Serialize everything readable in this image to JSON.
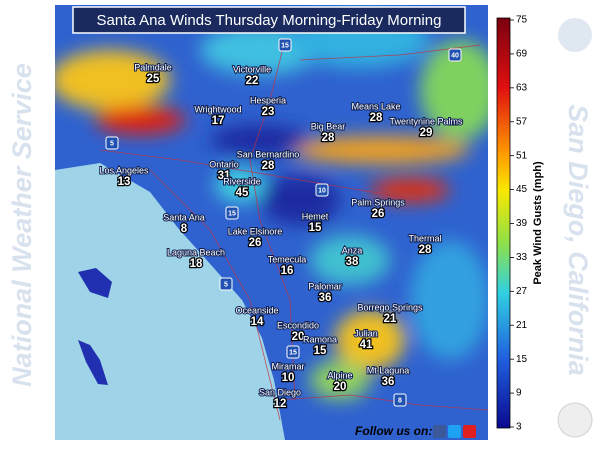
{
  "title": "Santa Ana Winds Thursday Morning-Friday Morning",
  "left_banner": "National Weather Service",
  "right_banner": "San Diego, California",
  "colorbar": {
    "label": "Peak Wind Gusts (mph)",
    "ticks": [
      75,
      69,
      63,
      57,
      51,
      45,
      39,
      33,
      27,
      21,
      15,
      9,
      3
    ]
  },
  "cities": [
    {
      "name": "Palmdale",
      "gust": "25"
    },
    {
      "name": "Victorville",
      "gust": "22"
    },
    {
      "name": "Hesperia",
      "gust": "23"
    },
    {
      "name": "Wrightwood",
      "gust": "17"
    },
    {
      "name": "Means Lake",
      "gust": "28"
    },
    {
      "name": "Twentynine Palms",
      "gust": "29"
    },
    {
      "name": "Big Bear",
      "gust": "28"
    },
    {
      "name": "San Bernardino",
      "gust": "28"
    },
    {
      "name": "Los Angeles",
      "gust": "13"
    },
    {
      "name": "Ontario",
      "gust": "31"
    },
    {
      "name": "Riverside",
      "gust": "45"
    },
    {
      "name": "Palm Springs",
      "gust": "26"
    },
    {
      "name": "Santa Ana",
      "gust": "8"
    },
    {
      "name": "Hemet",
      "gust": "15"
    },
    {
      "name": "Lake Elsinore",
      "gust": "26"
    },
    {
      "name": "Thermal",
      "gust": "28"
    },
    {
      "name": "Anza",
      "gust": "38"
    },
    {
      "name": "Laguna Beach",
      "gust": "18"
    },
    {
      "name": "Temecula",
      "gust": "16"
    },
    {
      "name": "Palomar",
      "gust": "36"
    },
    {
      "name": "Borrego Springs",
      "gust": "21"
    },
    {
      "name": "Oceanside",
      "gust": "14"
    },
    {
      "name": "Escondido",
      "gust": "20"
    },
    {
      "name": "Julian",
      "gust": "41"
    },
    {
      "name": "Ramona",
      "gust": "15"
    },
    {
      "name": "Mt Laguna",
      "gust": "36"
    },
    {
      "name": "Miramar",
      "gust": "10"
    },
    {
      "name": "Alpine",
      "gust": "20"
    },
    {
      "name": "San Diego",
      "gust": "12"
    }
  ],
  "highways": [
    "15",
    "40",
    "5",
    "10",
    "15",
    "5",
    "15",
    "8"
  ],
  "footer": "Follow us on:"
}
